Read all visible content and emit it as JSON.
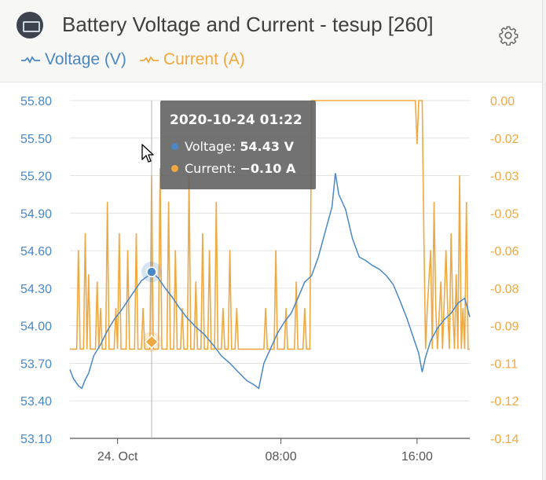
{
  "header": {
    "title": "Battery Voltage and Current - tesup [260]",
    "logo_icon": "battery-monitor-icon",
    "settings_icon": "gear-icon"
  },
  "legend": [
    {
      "label": "Voltage (V)",
      "color": "#4a87c5"
    },
    {
      "label": "Current (A)",
      "color": "#f0a840"
    }
  ],
  "tooltip": {
    "time": "2020-10-24 01:22",
    "voltage_label": "Voltage:",
    "voltage_value": "54.43 V",
    "current_label": "Current:",
    "current_value": "−0.10 A"
  },
  "colors": {
    "voltage": "#4a87c5",
    "current": "#f0a840"
  },
  "chart_data": {
    "type": "line",
    "x_tick_labels": [
      "24. Oct",
      "08:00",
      "16:00"
    ],
    "y_left": {
      "ticks": [
        "55.80",
        "55.50",
        "55.20",
        "54.90",
        "54.60",
        "54.30",
        "54.00",
        "53.70",
        "53.40",
        "53.10"
      ],
      "ylim": [
        53.1,
        55.8
      ],
      "unit": "V"
    },
    "y_right": {
      "ticks": [
        "0.00",
        "-0.02",
        "-0.03",
        "-0.05",
        "-0.06",
        "-0.08",
        "-0.09",
        "-0.11",
        "-0.12",
        "-0.14"
      ],
      "ylim": [
        -0.14,
        0.0
      ],
      "unit": "A"
    },
    "x_range_hours": [
      -4.4,
      19.1
    ],
    "series": [
      {
        "name": "Voltage (V)",
        "axis": "left",
        "points": [
          [
            -4.4,
            53.65
          ],
          [
            -4.2,
            53.58
          ],
          [
            -3.9,
            53.52
          ],
          [
            -3.7,
            53.5
          ],
          [
            -3.5,
            53.57
          ],
          [
            -3.3,
            53.62
          ],
          [
            -3.0,
            53.76
          ],
          [
            -2.6,
            53.85
          ],
          [
            -2.2,
            53.96
          ],
          [
            -1.8,
            54.05
          ],
          [
            -1.4,
            54.12
          ],
          [
            -1.0,
            54.2
          ],
          [
            -0.6,
            54.28
          ],
          [
            -0.2,
            54.36
          ],
          [
            0.2,
            54.4
          ],
          [
            0.4,
            54.43
          ],
          [
            0.8,
            54.38
          ],
          [
            1.2,
            54.3
          ],
          [
            1.6,
            54.23
          ],
          [
            2.0,
            54.15
          ],
          [
            2.5,
            54.06
          ],
          [
            3.0,
            53.99
          ],
          [
            3.5,
            53.93
          ],
          [
            4.0,
            53.85
          ],
          [
            4.5,
            53.76
          ],
          [
            5.0,
            53.7
          ],
          [
            5.5,
            53.63
          ],
          [
            6.0,
            53.56
          ],
          [
            6.4,
            53.53
          ],
          [
            6.7,
            53.5
          ],
          [
            7.0,
            53.7
          ],
          [
            7.4,
            53.82
          ],
          [
            7.8,
            53.94
          ],
          [
            8.2,
            54.03
          ],
          [
            8.6,
            54.1
          ],
          [
            9.0,
            54.22
          ],
          [
            9.4,
            54.35
          ],
          [
            9.8,
            54.4
          ],
          [
            10.2,
            54.55
          ],
          [
            10.6,
            54.75
          ],
          [
            11.0,
            54.95
          ],
          [
            11.2,
            55.22
          ],
          [
            11.4,
            55.05
          ],
          [
            11.8,
            54.93
          ],
          [
            12.2,
            54.7
          ],
          [
            12.6,
            54.55
          ],
          [
            13.0,
            54.52
          ],
          [
            13.4,
            54.48
          ],
          [
            13.8,
            54.45
          ],
          [
            14.2,
            54.4
          ],
          [
            14.6,
            54.33
          ],
          [
            15.0,
            54.2
          ],
          [
            15.4,
            54.06
          ],
          [
            15.8,
            53.9
          ],
          [
            16.1,
            53.78
          ],
          [
            16.3,
            53.63
          ],
          [
            16.5,
            53.75
          ],
          [
            16.8,
            53.88
          ],
          [
            17.2,
            53.98
          ],
          [
            17.6,
            54.05
          ],
          [
            18.0,
            54.1
          ],
          [
            18.4,
            54.18
          ],
          [
            18.8,
            54.22
          ],
          [
            19.1,
            54.07
          ]
        ]
      },
      {
        "name": "Current (A)",
        "axis": "right",
        "points": [
          [
            -4.4,
            -0.103
          ],
          [
            -4.0,
            -0.103
          ],
          [
            -3.9,
            -0.062
          ],
          [
            -3.8,
            -0.103
          ],
          [
            -3.6,
            -0.103
          ],
          [
            -3.5,
            -0.055
          ],
          [
            -3.4,
            -0.103
          ],
          [
            -3.3,
            -0.072
          ],
          [
            -3.2,
            -0.103
          ],
          [
            -2.9,
            -0.103
          ],
          [
            -2.8,
            -0.075
          ],
          [
            -2.7,
            -0.103
          ],
          [
            -2.6,
            -0.086
          ],
          [
            -2.5,
            -0.103
          ],
          [
            -2.3,
            -0.103
          ],
          [
            -2.2,
            -0.042
          ],
          [
            -2.1,
            -0.103
          ],
          [
            -1.8,
            -0.103
          ],
          [
            -1.7,
            -0.086
          ],
          [
            -1.6,
            -0.103
          ],
          [
            -1.5,
            -0.055
          ],
          [
            -1.4,
            -0.103
          ],
          [
            -1.1,
            -0.103
          ],
          [
            -1.0,
            -0.062
          ],
          [
            -0.9,
            -0.103
          ],
          [
            -0.6,
            -0.103
          ],
          [
            -0.5,
            -0.055
          ],
          [
            -0.4,
            -0.103
          ],
          [
            -0.2,
            -0.103
          ],
          [
            -0.1,
            -0.086
          ],
          [
            0.0,
            -0.103
          ],
          [
            0.3,
            -0.103
          ],
          [
            0.4,
            -0.031
          ],
          [
            0.5,
            -0.103
          ],
          [
            0.8,
            -0.103
          ],
          [
            0.9,
            -0.028
          ],
          [
            1.0,
            -0.103
          ],
          [
            1.3,
            -0.103
          ],
          [
            1.4,
            -0.042
          ],
          [
            1.5,
            -0.103
          ],
          [
            1.7,
            -0.103
          ],
          [
            1.8,
            -0.062
          ],
          [
            1.9,
            -0.103
          ],
          [
            2.1,
            -0.103
          ],
          [
            2.2,
            -0.086
          ],
          [
            2.3,
            -0.103
          ],
          [
            2.5,
            -0.103
          ],
          [
            2.6,
            -0.031
          ],
          [
            2.7,
            -0.103
          ],
          [
            2.9,
            -0.103
          ],
          [
            3.0,
            -0.075
          ],
          [
            3.1,
            -0.103
          ],
          [
            3.3,
            -0.103
          ],
          [
            3.4,
            -0.055
          ],
          [
            3.5,
            -0.103
          ],
          [
            3.7,
            -0.103
          ],
          [
            3.8,
            -0.062
          ],
          [
            3.9,
            -0.103
          ],
          [
            4.1,
            -0.103
          ],
          [
            4.2,
            -0.042
          ],
          [
            4.3,
            -0.103
          ],
          [
            4.5,
            -0.103
          ],
          [
            4.6,
            -0.086
          ],
          [
            4.7,
            -0.103
          ],
          [
            4.9,
            -0.103
          ],
          [
            5.0,
            -0.062
          ],
          [
            5.1,
            -0.103
          ],
          [
            5.3,
            -0.103
          ],
          [
            5.4,
            -0.086
          ],
          [
            5.5,
            -0.103
          ],
          [
            7.0,
            -0.103
          ],
          [
            7.1,
            -0.086
          ],
          [
            7.2,
            -0.103
          ],
          [
            7.6,
            -0.103
          ],
          [
            7.7,
            -0.062
          ],
          [
            7.8,
            -0.103
          ],
          [
            8.2,
            -0.103
          ],
          [
            8.3,
            -0.086
          ],
          [
            8.4,
            -0.103
          ],
          [
            8.8,
            -0.103
          ],
          [
            8.9,
            -0.075
          ],
          [
            9.0,
            -0.103
          ],
          [
            9.3,
            -0.103
          ],
          [
            9.4,
            -0.086
          ],
          [
            9.5,
            -0.103
          ],
          [
            9.7,
            -0.103
          ],
          [
            9.8,
            0.0
          ],
          [
            15.9,
            0.0
          ],
          [
            16.0,
            -0.018
          ],
          [
            16.1,
            0.0
          ],
          [
            16.3,
            0.0
          ],
          [
            16.4,
            -0.055
          ],
          [
            16.5,
            -0.103
          ],
          [
            16.6,
            -0.086
          ],
          [
            16.8,
            -0.062
          ],
          [
            16.9,
            -0.103
          ],
          [
            17.0,
            -0.042
          ],
          [
            17.1,
            -0.086
          ],
          [
            17.2,
            -0.103
          ],
          [
            17.4,
            -0.075
          ],
          [
            17.5,
            -0.103
          ],
          [
            17.7,
            -0.062
          ],
          [
            17.8,
            -0.086
          ],
          [
            17.9,
            -0.103
          ],
          [
            18.0,
            -0.055
          ],
          [
            18.1,
            -0.086
          ],
          [
            18.2,
            -0.103
          ],
          [
            18.3,
            -0.072
          ],
          [
            18.4,
            -0.103
          ],
          [
            18.5,
            -0.031
          ],
          [
            18.6,
            -0.103
          ],
          [
            18.7,
            -0.086
          ],
          [
            18.8,
            -0.103
          ],
          [
            18.9,
            -0.042
          ],
          [
            19.0,
            -0.103
          ],
          [
            19.1,
            -0.103
          ]
        ]
      }
    ],
    "crosshair_x_hours": 0.4,
    "grid": true
  }
}
